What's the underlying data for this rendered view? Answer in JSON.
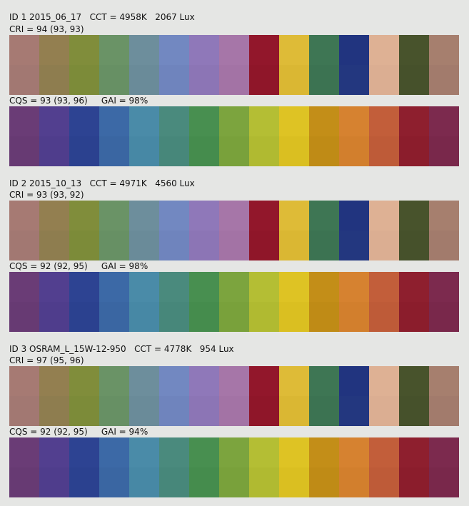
{
  "cri_swatches": [
    {
      "top": "#a67a73",
      "bottom": "#a27872"
    },
    {
      "top": "#937f50",
      "bottom": "#8e7d4f"
    },
    {
      "top": "#808d3b",
      "bottom": "#7c8b39"
    },
    {
      "top": "#6a9366",
      "bottom": "#679064"
    },
    {
      "top": "#6d8e9c",
      "bottom": "#6a8b99"
    },
    {
      "top": "#7288c1",
      "bottom": "#6f84bd"
    },
    {
      "top": "#8f78b9",
      "bottom": "#8c75b5"
    },
    {
      "top": "#a676a8",
      "bottom": "#a373a5"
    },
    {
      "top": "#92172b",
      "bottom": "#8f1629"
    },
    {
      "top": "#debb37",
      "bottom": "#dab733"
    },
    {
      "top": "#3e7654",
      "bottom": "#3c7352"
    },
    {
      "top": "#21347f",
      "bottom": "#23377f"
    },
    {
      "top": "#deb194",
      "bottom": "#dbae92"
    },
    {
      "top": "#48532c",
      "bottom": "#46512b"
    },
    {
      "top": "#a67f6e",
      "bottom": "#a27b6c"
    }
  ],
  "cqs_swatches": [
    {
      "top": "#6a3c76",
      "bottom": "#673a73"
    },
    {
      "top": "#523f8f",
      "bottom": "#4f3d8c"
    },
    {
      "top": "#2d4392",
      "bottom": "#2b418f"
    },
    {
      "top": "#3c69a6",
      "bottom": "#3a66a2"
    },
    {
      "top": "#4a8ba8",
      "bottom": "#4788a5"
    },
    {
      "top": "#4a8a7d",
      "bottom": "#47877a"
    },
    {
      "top": "#488f50",
      "bottom": "#458c4d"
    },
    {
      "top": "#7ca43e",
      "bottom": "#79a13b"
    },
    {
      "top": "#b4be34",
      "bottom": "#b0ba31"
    },
    {
      "top": "#dec324",
      "bottom": "#dabf21"
    },
    {
      "top": "#c38e18",
      "bottom": "#bf8b16"
    },
    {
      "top": "#d68230",
      "bottom": "#d27f2d"
    },
    {
      "top": "#c25e3a",
      "bottom": "#be5b38"
    },
    {
      "top": "#8e1f2e",
      "bottom": "#8b1d2c"
    },
    {
      "top": "#7c2a4e",
      "bottom": "#79284b"
    }
  ],
  "blocks": [
    {
      "header": "ID 1 2015_06_17   CCT = 4958K   2067 Lux",
      "cri": "CRI = 94 (93, 93)",
      "cqs": "CQS = 93 (93, 96)     GAI = 98%"
    },
    {
      "header": "ID 2 2015_10_13   CCT = 4971K   4560 Lux",
      "cri": "CRI = 93 (93, 92)",
      "cqs": "CQS = 92 (92, 95)     GAI = 98%"
    },
    {
      "header": "ID 3 OSRAM_L_15W-12-950   CCT = 4778K   954 Lux",
      "cri": "CRI = 97 (95, 96)",
      "cqs": "CQS = 92 (92, 95)     GAI = 94%"
    }
  ]
}
